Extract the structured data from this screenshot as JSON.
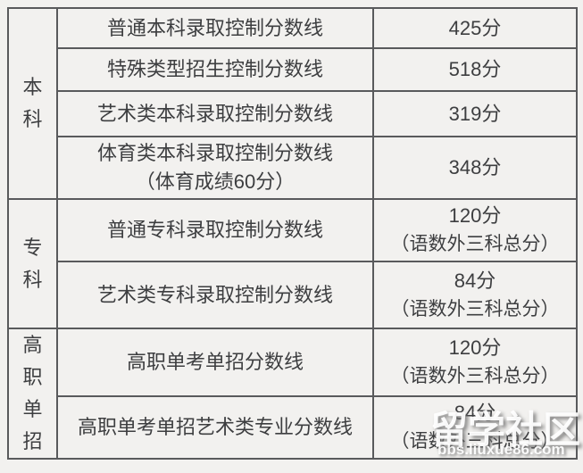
{
  "colors": {
    "background": "#f2f1ef",
    "border": "#595a5c",
    "text": "#3d3e40",
    "watermark": "#ffffff"
  },
  "table": {
    "sections": [
      {
        "label": "本科",
        "chars": [
          "本",
          "科"
        ],
        "rows": [
          {
            "name": "普通本科录取控制分数线",
            "score": "425分"
          },
          {
            "name": "特殊类型招生控制分数线",
            "score": "518分"
          },
          {
            "name": "艺术类本科录取控制分数线",
            "score": "319分"
          },
          {
            "name": "体育类本科录取控制分数线",
            "name_note": "（体育成绩60分）",
            "score": "348分"
          }
        ]
      },
      {
        "label": "专科",
        "chars": [
          "专",
          "科"
        ],
        "rows": [
          {
            "name": "普通专科录取控制分数线",
            "score": "120分",
            "score_note": "（语数外三科总分）"
          },
          {
            "name": "艺术类专科录取控制分数线",
            "score": "84分",
            "score_note": "（语数外三科总分）"
          }
        ]
      },
      {
        "label": "高职单招",
        "chars": [
          "高",
          "职",
          "单",
          "招"
        ],
        "rows": [
          {
            "name": "高职单考单招分数线",
            "score": "120分",
            "score_note": "（语数外三科总分）"
          },
          {
            "name": "高职单考单招艺术类专业分数线",
            "score": "84分",
            "score_note": "（语数外三科总分）"
          }
        ]
      }
    ]
  },
  "watermark": {
    "logo": "留学社区",
    "url": "bbs.liuxue86.com"
  }
}
